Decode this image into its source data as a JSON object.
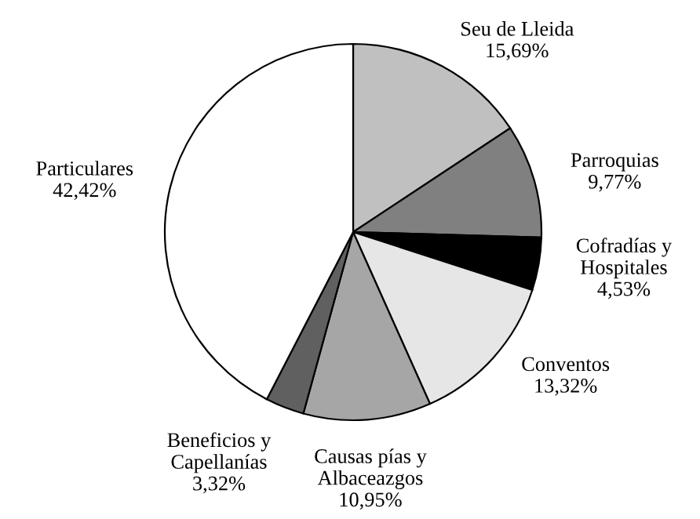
{
  "chart_data": {
    "type": "pie",
    "categories": [
      "Seu de Lleida",
      "Parroquias",
      "Cofradías y\nHospitales",
      "Conventos",
      "Causas pías y\nAlbaceazgos",
      "Beneficios y\nCapellanías",
      "Particulares"
    ],
    "values": [
      15.69,
      9.77,
      4.53,
      13.32,
      10.95,
      3.32,
      42.42
    ],
    "value_labels": [
      "15,69%",
      "9,77%",
      "4,53%",
      "13,32%",
      "10,95%",
      "3,32%",
      "42,42%"
    ],
    "colors": [
      "#c0c0c0",
      "#808080",
      "#000000",
      "#e6e6e6",
      "#a6a6a6",
      "#606060",
      "#ffffff"
    ]
  }
}
